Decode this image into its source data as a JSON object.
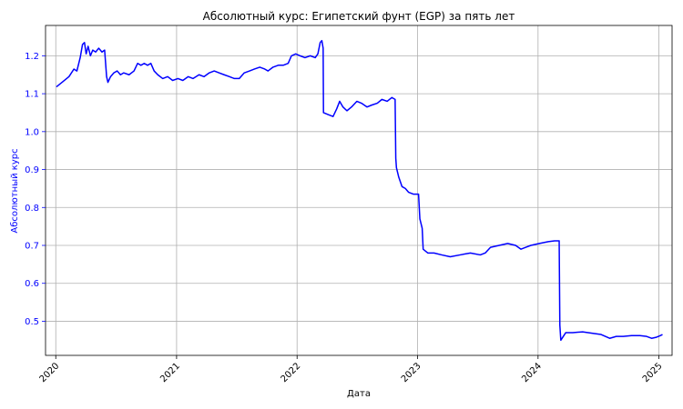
{
  "chart_data": {
    "type": "line",
    "title": "Абсолютный курс: Египетский фунт (EGP) за пять лет",
    "xlabel": "Дата",
    "ylabel": "Абсолютный курс",
    "xlim": [
      "2019-12-01",
      "2025-02-10"
    ],
    "ylim": [
      0.41,
      1.28
    ],
    "xticks": [
      {
        "label": "2020",
        "date": "2020-01-01"
      },
      {
        "label": "2021",
        "date": "2021-01-01"
      },
      {
        "label": "2022",
        "date": "2022-01-01"
      },
      {
        "label": "2023",
        "date": "2023-01-01"
      },
      {
        "label": "2024",
        "date": "2024-01-01"
      },
      {
        "label": "2025",
        "date": "2025-01-01"
      }
    ],
    "yticks": [
      "0.5",
      "0.6",
      "0.7",
      "0.8",
      "0.9",
      "1.0",
      "1.1",
      "1.2"
    ],
    "grid": true,
    "line_color": "#0000ff",
    "series": [
      {
        "points": [
          [
            "2020-01-03",
            1.118
          ],
          [
            "2020-01-20",
            1.13
          ],
          [
            "2020-02-10",
            1.145
          ],
          [
            "2020-02-25",
            1.165
          ],
          [
            "2020-03-05",
            1.16
          ],
          [
            "2020-03-15",
            1.195
          ],
          [
            "2020-03-22",
            1.23
          ],
          [
            "2020-03-28",
            1.235
          ],
          [
            "2020-04-02",
            1.205
          ],
          [
            "2020-04-08",
            1.225
          ],
          [
            "2020-04-15",
            1.2
          ],
          [
            "2020-04-22",
            1.215
          ],
          [
            "2020-05-01",
            1.21
          ],
          [
            "2020-05-10",
            1.22
          ],
          [
            "2020-05-20",
            1.21
          ],
          [
            "2020-05-28",
            1.215
          ],
          [
            "2020-06-03",
            1.145
          ],
          [
            "2020-06-07",
            1.13
          ],
          [
            "2020-06-15",
            1.145
          ],
          [
            "2020-06-25",
            1.155
          ],
          [
            "2020-07-05",
            1.16
          ],
          [
            "2020-07-15",
            1.15
          ],
          [
            "2020-07-25",
            1.155
          ],
          [
            "2020-08-10",
            1.15
          ],
          [
            "2020-08-25",
            1.16
          ],
          [
            "2020-09-05",
            1.18
          ],
          [
            "2020-09-15",
            1.175
          ],
          [
            "2020-09-25",
            1.18
          ],
          [
            "2020-10-05",
            1.175
          ],
          [
            "2020-10-15",
            1.18
          ],
          [
            "2020-10-25",
            1.16
          ],
          [
            "2020-11-05",
            1.15
          ],
          [
            "2020-11-20",
            1.14
          ],
          [
            "2020-12-05",
            1.145
          ],
          [
            "2020-12-20",
            1.135
          ],
          [
            "2021-01-05",
            1.14
          ],
          [
            "2021-01-20",
            1.135
          ],
          [
            "2021-02-05",
            1.145
          ],
          [
            "2021-02-20",
            1.14
          ],
          [
            "2021-03-10",
            1.15
          ],
          [
            "2021-03-25",
            1.145
          ],
          [
            "2021-04-10",
            1.155
          ],
          [
            "2021-04-25",
            1.16
          ],
          [
            "2021-05-10",
            1.155
          ],
          [
            "2021-05-25",
            1.15
          ],
          [
            "2021-06-10",
            1.145
          ],
          [
            "2021-06-25",
            1.14
          ],
          [
            "2021-07-10",
            1.14
          ],
          [
            "2021-07-25",
            1.155
          ],
          [
            "2021-08-10",
            1.16
          ],
          [
            "2021-08-25",
            1.165
          ],
          [
            "2021-09-10",
            1.17
          ],
          [
            "2021-09-25",
            1.165
          ],
          [
            "2021-10-05",
            1.16
          ],
          [
            "2021-10-20",
            1.17
          ],
          [
            "2021-11-05",
            1.175
          ],
          [
            "2021-11-20",
            1.175
          ],
          [
            "2021-12-05",
            1.18
          ],
          [
            "2021-12-15",
            1.2
          ],
          [
            "2021-12-28",
            1.205
          ],
          [
            "2022-01-10",
            1.2
          ],
          [
            "2022-01-25",
            1.195
          ],
          [
            "2022-02-10",
            1.2
          ],
          [
            "2022-02-25",
            1.195
          ],
          [
            "2022-03-05",
            1.205
          ],
          [
            "2022-03-12",
            1.235
          ],
          [
            "2022-03-17",
            1.24
          ],
          [
            "2022-03-21",
            1.22
          ],
          [
            "2022-03-22",
            1.05
          ],
          [
            "2022-04-05",
            1.045
          ],
          [
            "2022-04-20",
            1.04
          ],
          [
            "2022-05-01",
            1.06
          ],
          [
            "2022-05-10",
            1.08
          ],
          [
            "2022-05-20",
            1.065
          ],
          [
            "2022-06-01",
            1.055
          ],
          [
            "2022-06-15",
            1.065
          ],
          [
            "2022-07-01",
            1.08
          ],
          [
            "2022-07-15",
            1.075
          ],
          [
            "2022-08-01",
            1.065
          ],
          [
            "2022-08-15",
            1.07
          ],
          [
            "2022-09-01",
            1.075
          ],
          [
            "2022-09-15",
            1.085
          ],
          [
            "2022-10-01",
            1.08
          ],
          [
            "2022-10-15",
            1.09
          ],
          [
            "2022-10-25",
            1.085
          ],
          [
            "2022-10-27",
            0.93
          ],
          [
            "2022-10-29",
            0.905
          ],
          [
            "2022-11-05",
            0.88
          ],
          [
            "2022-11-15",
            0.855
          ],
          [
            "2022-11-25",
            0.85
          ],
          [
            "2022-12-05",
            0.84
          ],
          [
            "2022-12-20",
            0.835
          ],
          [
            "2023-01-04",
            0.835
          ],
          [
            "2023-01-08",
            0.77
          ],
          [
            "2023-01-15",
            0.745
          ],
          [
            "2023-01-18",
            0.69
          ],
          [
            "2023-02-01",
            0.68
          ],
          [
            "2023-02-20",
            0.68
          ],
          [
            "2023-03-15",
            0.675
          ],
          [
            "2023-04-10",
            0.67
          ],
          [
            "2023-05-10",
            0.675
          ],
          [
            "2023-06-10",
            0.68
          ],
          [
            "2023-07-10",
            0.675
          ],
          [
            "2023-07-25",
            0.68
          ],
          [
            "2023-08-10",
            0.695
          ],
          [
            "2023-09-05",
            0.7
          ],
          [
            "2023-10-01",
            0.705
          ],
          [
            "2023-10-25",
            0.7
          ],
          [
            "2023-11-10",
            0.69
          ],
          [
            "2023-11-25",
            0.695
          ],
          [
            "2023-12-10",
            0.7
          ],
          [
            "2024-01-05",
            0.705
          ],
          [
            "2024-02-01",
            0.71
          ],
          [
            "2024-02-20",
            0.712
          ],
          [
            "2024-03-05",
            0.712
          ],
          [
            "2024-03-07",
            0.49
          ],
          [
            "2024-03-10",
            0.45
          ],
          [
            "2024-03-25",
            0.47
          ],
          [
            "2024-04-15",
            0.47
          ],
          [
            "2024-05-15",
            0.472
          ],
          [
            "2024-06-15",
            0.468
          ],
          [
            "2024-07-10",
            0.465
          ],
          [
            "2024-08-05",
            0.455
          ],
          [
            "2024-08-25",
            0.46
          ],
          [
            "2024-09-15",
            0.46
          ],
          [
            "2024-10-10",
            0.462
          ],
          [
            "2024-11-05",
            0.462
          ],
          [
            "2024-11-25",
            0.46
          ],
          [
            "2024-12-10",
            0.455
          ],
          [
            "2024-12-25",
            0.458
          ],
          [
            "2025-01-05",
            0.462
          ],
          [
            "2025-01-12",
            0.465
          ]
        ]
      }
    ]
  }
}
